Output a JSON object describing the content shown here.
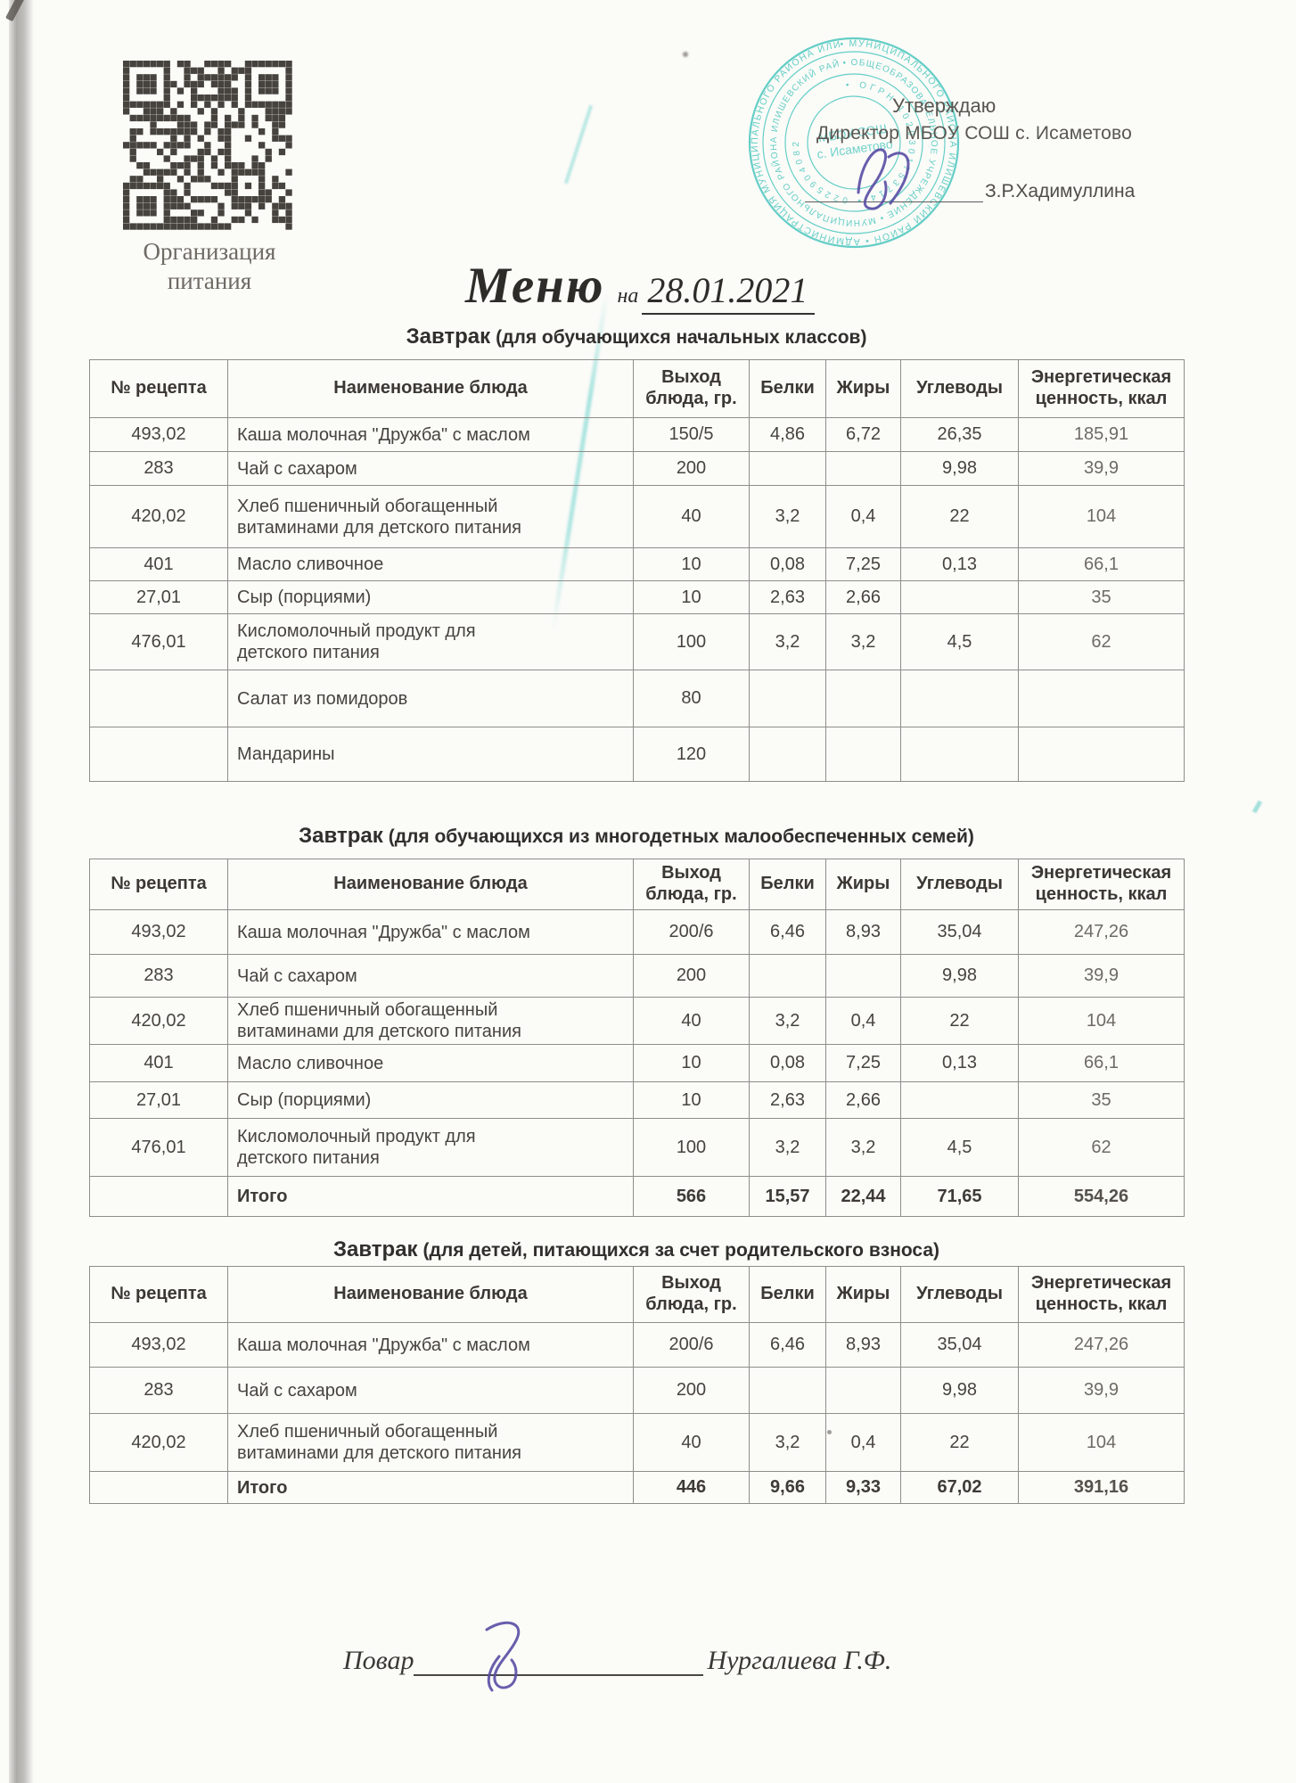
{
  "qr": {
    "caption_line1": "Организация",
    "caption_line2": "питания"
  },
  "title": {
    "word": "Меню",
    "prep": "на",
    "date": "28.01.2021"
  },
  "approval": {
    "line1": "Утверждаю",
    "line2": "Директор МБОУ СОШ с. Исаметово",
    "signature_name": "З.Р.Хадимуллина"
  },
  "stamp": {
    "ring_outer": "• МУНИЦИПАЛЬНОГО РАЙОНА ИЛИШЕВСКИЙ РАЙОН • АДМИНИСТРАЦИЯ МУНИЦИПАЛЬНОГО РАЙОНА ИЛИШЕВСКИЙ",
    "ring_middle": "• ОБЩЕОБРАЗОВАТЕЛЬНОЕ УЧРЕЖДЕНИЕ • МУНИЦИПАЛЬНОГО РАЙОНА ИЛИШЕВСКИЙ РАЙОН",
    "ring_inner": "• ОГРН 1020301753714 • 0225904082",
    "center_line1": "МБОУ СОШ",
    "center_line2": "с. Исаметово"
  },
  "footer": {
    "role": "Повар",
    "name": "Нургалиева Г.Ф."
  },
  "tables": [
    {
      "title_main": "Завтрак",
      "title_sub": "(для обучающихся начальных классов)",
      "headers": [
        "№ рецепта",
        "Наименование блюда",
        "Выход блюда, гр.",
        "Белки",
        "Жиры",
        "Углеводы",
        "Энергетическая ценность, ккал"
      ],
      "rows": [
        {
          "cells": [
            "493,02",
            "Каша молочная \"Дружба\" с маслом",
            "150/5",
            "4,86",
            "6,72",
            "26,35",
            "185,91"
          ]
        },
        {
          "cells": [
            "283",
            "Чай с сахаром",
            "200",
            "",
            "",
            "9,98",
            "39,9"
          ]
        },
        {
          "cells": [
            "420,02",
            "Хлеб пшеничный обогащенный витаминами для детского питания",
            "40",
            "3,2",
            "0,4",
            "22",
            "104"
          ]
        },
        {
          "cells": [
            "401",
            "Масло сливочное",
            "10",
            "0,08",
            "7,25",
            "0,13",
            "66,1"
          ]
        },
        {
          "cells": [
            "27,01",
            "Сыр (порциями)",
            "10",
            "2,63",
            "2,66",
            "",
            "35"
          ]
        },
        {
          "cells": [
            "476,01",
            "Кисломолочный продукт для детского питания",
            "100",
            "3,2",
            "3,2",
            "4,5",
            "62"
          ]
        },
        {
          "cells": [
            "",
            "Салат из помидоров",
            "80",
            "",
            "",
            "",
            ""
          ]
        },
        {
          "cells": [
            "",
            "Мандарины",
            "120",
            "",
            "",
            "",
            ""
          ]
        }
      ]
    },
    {
      "title_main": "Завтрак",
      "title_sub": "(для обучающихся из многодетных малообеспеченных семей)",
      "headers": [
        "№ рецепта",
        "Наименование блюда",
        "Выход блюда, гр.",
        "Белки",
        "Жиры",
        "Углеводы",
        "Энергетическая ценность, ккал"
      ],
      "rows": [
        {
          "cells": [
            "493,02",
            "Каша молочная \"Дружба\" с маслом",
            "200/6",
            "6,46",
            "8,93",
            "35,04",
            "247,26"
          ]
        },
        {
          "cells": [
            "283",
            "Чай с сахаром",
            "200",
            "",
            "",
            "9,98",
            "39,9"
          ]
        },
        {
          "cells": [
            "420,02",
            "Хлеб пшеничный обогащенный витаминами для детского питания",
            "40",
            "3,2",
            "0,4",
            "22",
            "104"
          ]
        },
        {
          "cells": [
            "401",
            "Масло сливочное",
            "10",
            "0,08",
            "7,25",
            "0,13",
            "66,1"
          ]
        },
        {
          "cells": [
            "27,01",
            "Сыр (порциями)",
            "10",
            "2,63",
            "2,66",
            "",
            "35"
          ]
        },
        {
          "cells": [
            "476,01",
            "Кисломолочный продукт для детского питания",
            "100",
            "3,2",
            "3,2",
            "4,5",
            "62"
          ]
        },
        {
          "cells": [
            "",
            "Итого",
            "566",
            "15,57",
            "22,44",
            "71,65",
            "554,26"
          ],
          "bold": true
        }
      ]
    },
    {
      "title_main": "Завтрак",
      "title_sub": "(для детей, питающихся за счет родительского взноса)",
      "headers": [
        "№ рецепта",
        "Наименование блюда",
        "Выход блюда, гр.",
        "Белки",
        "Жиры",
        "Углеводы",
        "Энергетическая ценность, ккал"
      ],
      "rows": [
        {
          "cells": [
            "493,02",
            "Каша молочная \"Дружба\" с маслом",
            "200/6",
            "6,46",
            "8,93",
            "35,04",
            "247,26"
          ]
        },
        {
          "cells": [
            "283",
            "Чай с сахаром",
            "200",
            "",
            "",
            "9,98",
            "39,9"
          ]
        },
        {
          "cells": [
            "420,02",
            "Хлеб пшеничный обогащенный витаминами для детского питания",
            "40",
            "3,2",
            "0,4",
            "22",
            "104"
          ]
        },
        {
          "cells": [
            "",
            "Итого",
            "446",
            "9,66",
            "9,33",
            "67,02",
            "391,16"
          ],
          "bold": true
        }
      ]
    }
  ]
}
